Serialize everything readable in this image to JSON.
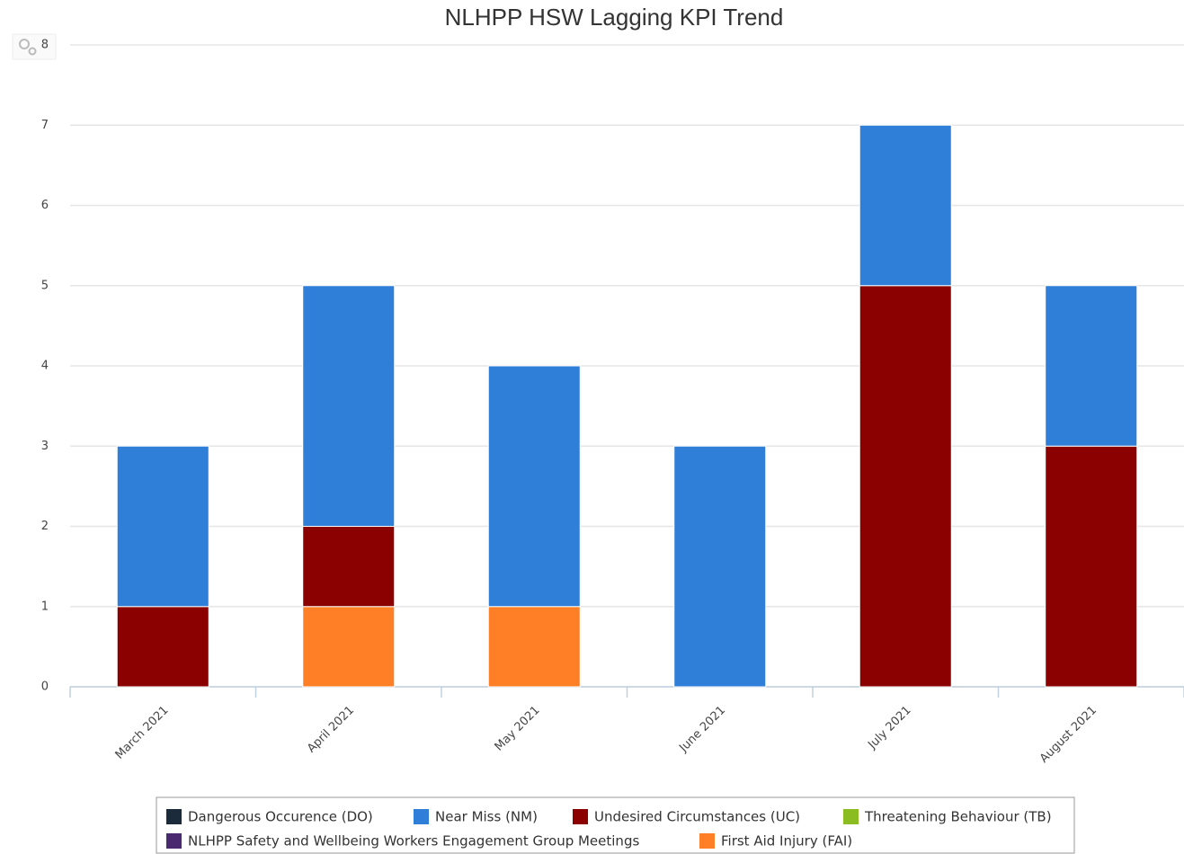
{
  "chart_data": {
    "type": "stacked_bar",
    "title": "NLHPP HSW Lagging KPI Trend",
    "categories": [
      "March 2021",
      "April 2021",
      "May 2021",
      "June 2021",
      "July 2021",
      "August 2021"
    ],
    "series": [
      {
        "name": "Dangerous Occurence (DO)",
        "color": "#1c2b3c",
        "values": [
          0,
          0,
          0,
          0,
          0,
          0
        ]
      },
      {
        "name": "Near Miss (NM)",
        "color": "#2f7ed8",
        "values": [
          2,
          3,
          3,
          3,
          2,
          2
        ]
      },
      {
        "name": "Undesired Circumstances (UC)",
        "color": "#8b0000",
        "values": [
          1,
          1,
          0,
          0,
          5,
          3
        ]
      },
      {
        "name": "Threatening Behaviour (TB)",
        "color": "#8bbc21",
        "values": [
          0,
          0,
          0,
          0,
          0,
          0
        ]
      },
      {
        "name": "NLHPP Safety and Wellbeing Workers Engagement Group Meetings",
        "color": "#492970",
        "values": [
          0,
          0,
          0,
          0,
          0,
          0
        ]
      },
      {
        "name": "First Aid Injury (FAI)",
        "color": "#ff7f27",
        "values": [
          0,
          1,
          1,
          0,
          0,
          0
        ]
      }
    ],
    "ylim": [
      0,
      8
    ],
    "yticks": [
      0,
      1,
      2,
      3,
      4,
      5,
      6,
      7,
      8
    ],
    "grid": true
  }
}
